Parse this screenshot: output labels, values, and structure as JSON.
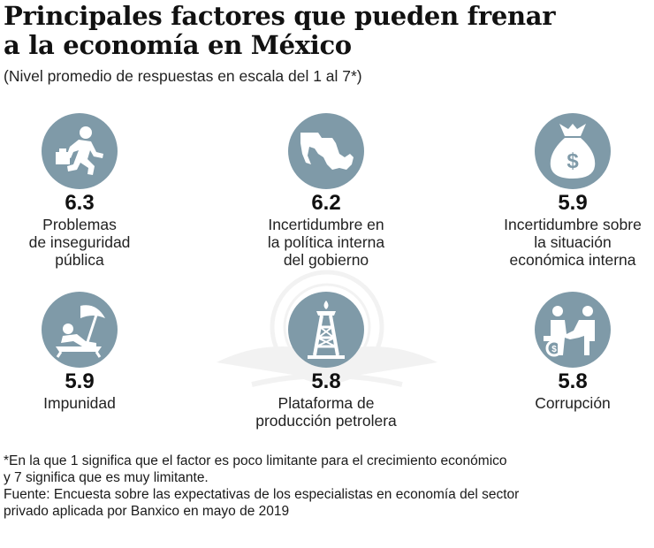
{
  "title_lines": [
    "Principales factores que pueden frenar",
    "a la economía en México"
  ],
  "subtitle": "(Nivel promedio de respuestas en escala del 1 al 7*)",
  "chart_data": {
    "type": "table",
    "title": "Principales factores que pueden frenar a la economía en México",
    "subtitle": "(Nivel promedio de respuestas en escala del 1 al 7*)",
    "categories": [
      "Problemas de inseguridad pública",
      "Incertidumbre en la política interna del gobierno",
      "Incertidumbre sobre la situación económica interna",
      "Impunidad",
      "Plataforma de producción petrolera",
      "Corrupción"
    ],
    "values": [
      6.3,
      6.2,
      5.9,
      5.9,
      5.8,
      5.8
    ]
  },
  "items": [
    {
      "value": "6.3",
      "label_lines": [
        "Problemas",
        "de inseguridad",
        "pública"
      ],
      "icon": "running-thief-icon"
    },
    {
      "value": "6.2",
      "label_lines": [
        "Incertidumbre en",
        "la política interna",
        "del gobierno"
      ],
      "icon": "mexico-map-icon"
    },
    {
      "value": "5.9",
      "label_lines": [
        "Incertidumbre sobre",
        "la situación",
        "económica interna"
      ],
      "icon": "money-bag-icon"
    },
    {
      "value": "5.9",
      "label_lines": [
        "Impunidad"
      ],
      "icon": "beach-relax-icon"
    },
    {
      "value": "5.8",
      "label_lines": [
        "Plataforma de",
        "producción petrolera"
      ],
      "icon": "oil-rig-icon"
    },
    {
      "value": "5.8",
      "label_lines": [
        "Corrupción"
      ],
      "icon": "bribe-handshake-icon"
    }
  ],
  "colors": {
    "icon_circle": "#7f9aa8",
    "icon_fill": "#ffffff"
  },
  "footnote_lines": [
    "*En la que 1 significa que el factor es poco limitante para el crecimiento económico",
    "y 7 significa que es muy limitante.",
    "Fuente: Encuesta sobre las expectativas de los especialistas en economía del sector",
    "privado aplicada por Banxico en mayo de 2019"
  ]
}
